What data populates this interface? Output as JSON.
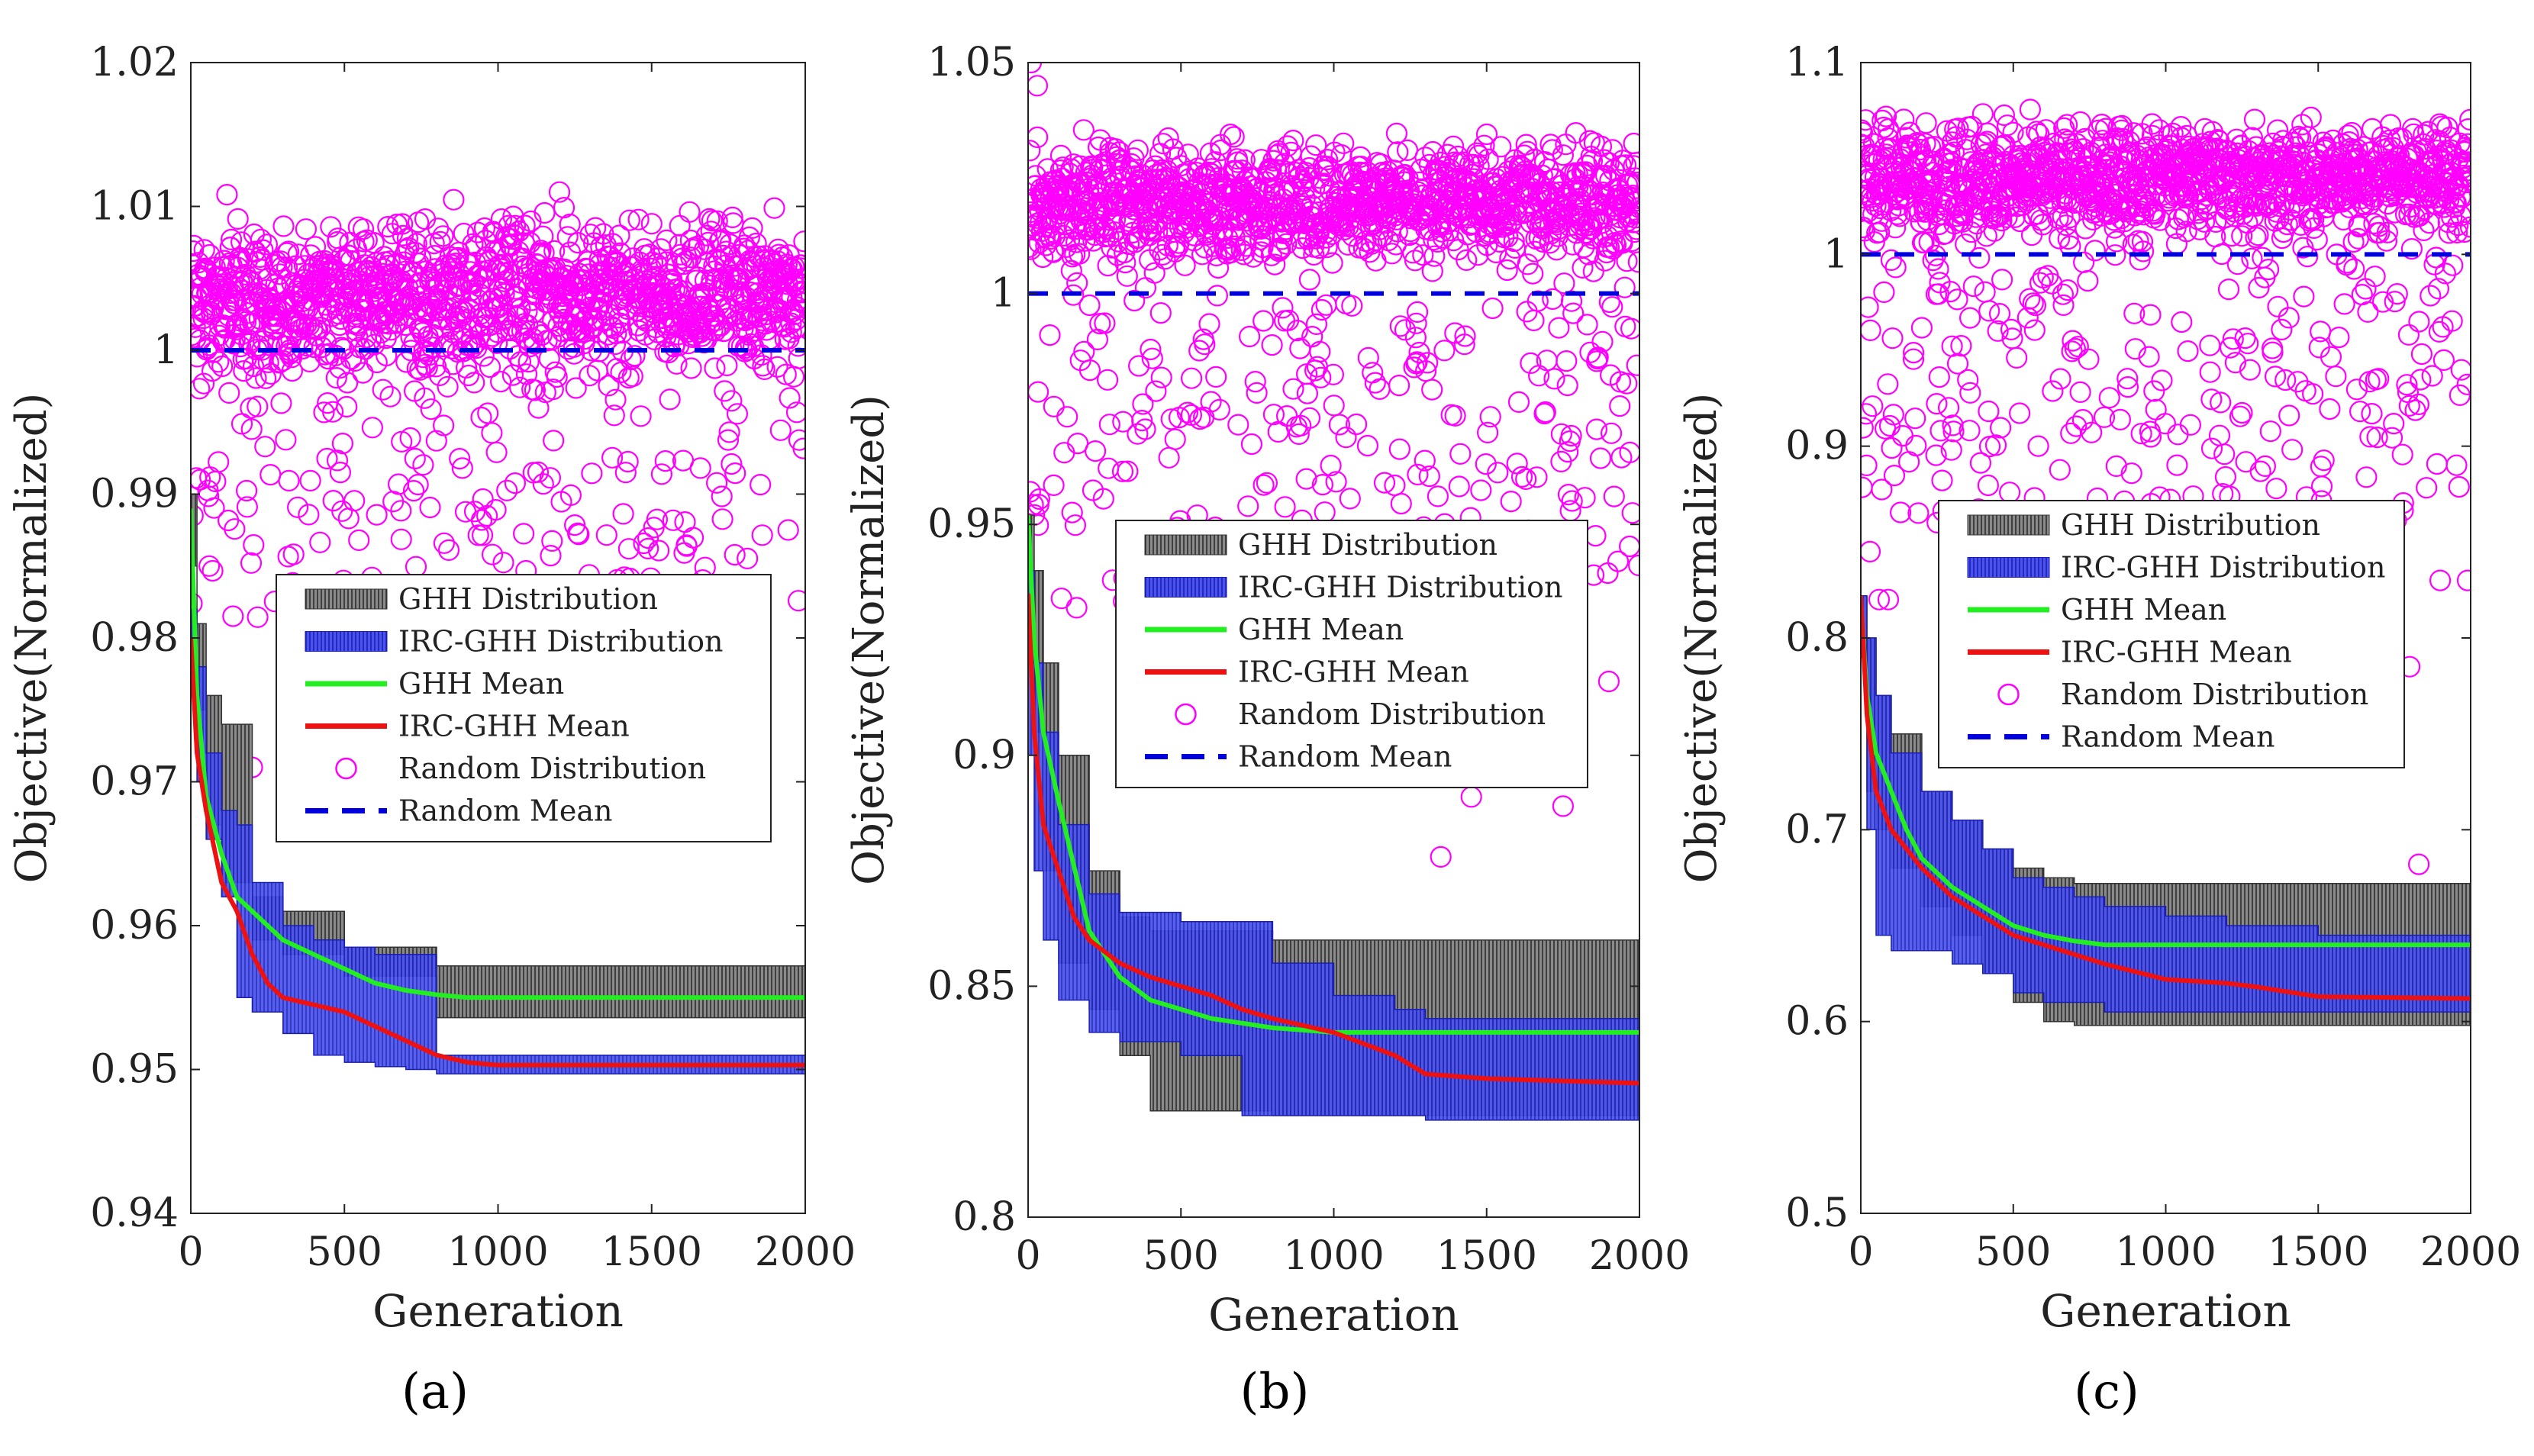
{
  "figure": {
    "panel_labels": [
      "(a)",
      "(b)",
      "(c)"
    ]
  },
  "colors": {
    "random": "#ff00ff",
    "random_mean": "#0000dd",
    "ghh_band": "#707070",
    "irc_band": "#2a33e0",
    "ghh_mean": "#22ee22",
    "irc_mean": "#ee1111"
  },
  "chart_data": [
    {
      "type": "line",
      "panel": "(a)",
      "xlabel": "Generation",
      "ylabel": "Objective(Normalized)",
      "xlim": [
        0,
        2000
      ],
      "ylim": [
        0.94,
        1.02
      ],
      "xticks": [
        0,
        500,
        1000,
        1500,
        2000
      ],
      "yticks": [
        0.94,
        0.95,
        0.96,
        0.97,
        0.98,
        0.99,
        1,
        1.01,
        1.02
      ],
      "ytick_labels": [
        "0.94",
        "0.95",
        "0.96",
        "0.97",
        "0.98",
        "0.99",
        "1",
        "1.01",
        "1.02"
      ],
      "legend": [
        "GHH Distribution",
        "IRC-GHH Distribution",
        "GHH Mean",
        "IRC-GHH Mean",
        "Random Distribution",
        "Random Mean"
      ],
      "legend_position": "center",
      "random": {
        "center": 1.004,
        "spread": 0.0075,
        "low_tail": 0.981,
        "outliers": [
          [
            30,
            0.991
          ],
          [
            60,
            0.985
          ],
          [
            200,
            0.971
          ],
          [
            1200,
            1.011
          ]
        ]
      },
      "random_mean": 1.0,
      "ghh_mean": {
        "x": [
          0,
          20,
          50,
          100,
          150,
          200,
          300,
          400,
          500,
          600,
          700,
          800,
          900,
          1000,
          1500,
          2000
        ],
        "y": [
          0.989,
          0.976,
          0.969,
          0.965,
          0.962,
          0.961,
          0.959,
          0.958,
          0.957,
          0.956,
          0.9555,
          0.9552,
          0.955,
          0.955,
          0.955,
          0.955
        ]
      },
      "ghh_band": {
        "x": [
          0,
          20,
          50,
          100,
          200,
          300,
          500,
          800,
          2000
        ],
        "upper": [
          0.99,
          0.981,
          0.976,
          0.974,
          0.962,
          0.961,
          0.9585,
          0.9572,
          0.9572
        ],
        "lower": [
          0.985,
          0.975,
          0.967,
          0.963,
          0.959,
          0.958,
          0.9565,
          0.9536,
          0.9536
        ]
      },
      "irc_mean": {
        "x": [
          0,
          20,
          50,
          100,
          150,
          200,
          250,
          300,
          400,
          500,
          600,
          700,
          800,
          900,
          1000,
          2000
        ],
        "y": [
          0.98,
          0.972,
          0.968,
          0.963,
          0.961,
          0.958,
          0.956,
          0.955,
          0.9545,
          0.954,
          0.953,
          0.952,
          0.951,
          0.9505,
          0.9503,
          0.9503
        ]
      },
      "irc_band": {
        "x": [
          0,
          20,
          50,
          100,
          150,
          200,
          300,
          400,
          500,
          600,
          700,
          800,
          900,
          2000
        ],
        "upper": [
          0.982,
          0.978,
          0.972,
          0.968,
          0.967,
          0.963,
          0.96,
          0.959,
          0.9585,
          0.958,
          0.958,
          0.951,
          0.951,
          0.951
        ],
        "lower": [
          0.978,
          0.97,
          0.966,
          0.962,
          0.955,
          0.954,
          0.9525,
          0.951,
          0.9505,
          0.9502,
          0.95,
          0.9497,
          0.9497,
          0.9497
        ]
      }
    },
    {
      "type": "line",
      "panel": "(b)",
      "xlabel": "Generation",
      "ylabel": "Objective(Normalized)",
      "xlim": [
        0,
        2000
      ],
      "ylim": [
        0.8,
        1.05
      ],
      "xticks": [
        0,
        500,
        1000,
        1500,
        2000
      ],
      "yticks": [
        0.8,
        0.85,
        0.9,
        0.95,
        1,
        1.05
      ],
      "ytick_labels": [
        "0.8",
        "0.85",
        "0.9",
        "0.95",
        "1",
        "1.05"
      ],
      "legend": [
        "GHH Distribution",
        "IRC-GHH Distribution",
        "GHH Mean",
        "IRC-GHH Mean",
        "Random Distribution",
        "Random Mean"
      ],
      "legend_position": "center",
      "random": {
        "center": 1.02,
        "spread": 0.018,
        "low_tail": 0.93,
        "outliers": [
          [
            10,
            1.05
          ],
          [
            30,
            1.045
          ],
          [
            1350,
            0.878
          ],
          [
            1450,
            0.891
          ],
          [
            1750,
            0.889
          ],
          [
            1900,
            0.916
          ],
          [
            1930,
            0.942
          ]
        ]
      },
      "random_mean": 1.0,
      "ghh_mean": {
        "x": [
          0,
          20,
          50,
          100,
          150,
          200,
          300,
          400,
          500,
          600,
          700,
          800,
          1000,
          1500,
          2000
        ],
        "y": [
          0.952,
          0.925,
          0.905,
          0.89,
          0.876,
          0.862,
          0.852,
          0.847,
          0.845,
          0.843,
          0.842,
          0.841,
          0.84,
          0.84,
          0.84
        ]
      },
      "ghh_band": {
        "x": [
          0,
          20,
          50,
          100,
          200,
          300,
          400,
          500,
          700,
          800,
          1200,
          1300,
          2000
        ],
        "upper": [
          0.952,
          0.94,
          0.92,
          0.9,
          0.875,
          0.865,
          0.862,
          0.862,
          0.862,
          0.86,
          0.86,
          0.86,
          0.86
        ],
        "lower": [
          0.94,
          0.905,
          0.875,
          0.855,
          0.845,
          0.835,
          0.823,
          0.823,
          0.823,
          0.822,
          0.822,
          0.822,
          0.822
        ]
      },
      "irc_mean": {
        "x": [
          0,
          20,
          50,
          100,
          150,
          200,
          300,
          400,
          500,
          600,
          700,
          800,
          1000,
          1200,
          1300,
          1500,
          2000
        ],
        "y": [
          0.935,
          0.905,
          0.885,
          0.875,
          0.865,
          0.86,
          0.855,
          0.852,
          0.85,
          0.848,
          0.845,
          0.843,
          0.84,
          0.835,
          0.831,
          0.83,
          0.829
        ]
      },
      "irc_band": {
        "x": [
          0,
          20,
          50,
          100,
          200,
          300,
          500,
          700,
          800,
          1000,
          1200,
          1300,
          2000
        ],
        "upper": [
          0.94,
          0.92,
          0.905,
          0.885,
          0.87,
          0.866,
          0.864,
          0.864,
          0.855,
          0.848,
          0.845,
          0.843,
          0.843
        ],
        "lower": [
          0.9,
          0.875,
          0.86,
          0.847,
          0.84,
          0.838,
          0.835,
          0.822,
          0.822,
          0.822,
          0.822,
          0.821,
          0.821
        ]
      }
    },
    {
      "type": "line",
      "panel": "(c)",
      "xlabel": "Generation",
      "ylabel": "Objective(Normalized)",
      "xlim": [
        0,
        2000
      ],
      "ylim": [
        0.5,
        1.1
      ],
      "xticks": [
        0,
        500,
        1000,
        1500,
        2000
      ],
      "yticks": [
        0.5,
        0.6,
        0.7,
        0.8,
        0.9,
        1,
        1.1
      ],
      "ytick_labels": [
        "0.5",
        "0.6",
        "0.7",
        "0.8",
        "0.9",
        "1",
        "1.1"
      ],
      "legend": [
        "GHH Distribution",
        "IRC-GHH Distribution",
        "GHH Mean",
        "IRC-GHH Mean",
        "Random Distribution",
        "Random Mean"
      ],
      "legend_position": "center",
      "random": {
        "center": 1.04,
        "spread": 0.04,
        "low_tail": 0.86,
        "outliers": [
          [
            30,
            0.845
          ],
          [
            60,
            0.82
          ],
          [
            90,
            0.82
          ],
          [
            1800,
            0.785
          ],
          [
            1830,
            0.682
          ],
          [
            1900,
            0.83
          ],
          [
            1990,
            0.83
          ]
        ]
      },
      "random_mean": 1.0,
      "ghh_mean": {
        "x": [
          0,
          20,
          50,
          100,
          150,
          200,
          300,
          400,
          500,
          600,
          700,
          800,
          1000,
          1500,
          2000
        ],
        "y": [
          0.82,
          0.77,
          0.74,
          0.72,
          0.7,
          0.685,
          0.67,
          0.66,
          0.65,
          0.645,
          0.642,
          0.64,
          0.64,
          0.64,
          0.64
        ]
      },
      "ghh_band": {
        "x": [
          0,
          20,
          50,
          100,
          200,
          300,
          400,
          500,
          600,
          700,
          2000
        ],
        "upper": [
          0.822,
          0.8,
          0.77,
          0.75,
          0.72,
          0.705,
          0.69,
          0.68,
          0.675,
          0.672,
          0.672
        ],
        "lower": [
          0.79,
          0.72,
          0.7,
          0.68,
          0.66,
          0.645,
          0.625,
          0.61,
          0.6,
          0.598,
          0.598
        ]
      },
      "irc_mean": {
        "x": [
          0,
          20,
          50,
          100,
          150,
          200,
          300,
          400,
          500,
          600,
          700,
          800,
          1000,
          1200,
          1300,
          1500,
          2000
        ],
        "y": [
          0.822,
          0.76,
          0.72,
          0.7,
          0.69,
          0.68,
          0.665,
          0.655,
          0.645,
          0.64,
          0.635,
          0.63,
          0.622,
          0.62,
          0.618,
          0.613,
          0.612
        ]
      },
      "irc_band": {
        "x": [
          0,
          20,
          50,
          100,
          200,
          300,
          400,
          500,
          600,
          700,
          800,
          1000,
          1200,
          1500,
          2000
        ],
        "upper": [
          0.822,
          0.8,
          0.77,
          0.74,
          0.72,
          0.705,
          0.69,
          0.675,
          0.67,
          0.665,
          0.66,
          0.655,
          0.65,
          0.645,
          0.635
        ],
        "lower": [
          0.8,
          0.7,
          0.645,
          0.637,
          0.637,
          0.63,
          0.625,
          0.615,
          0.61,
          0.61,
          0.605,
          0.605,
          0.605,
          0.605,
          0.605
        ]
      }
    }
  ]
}
